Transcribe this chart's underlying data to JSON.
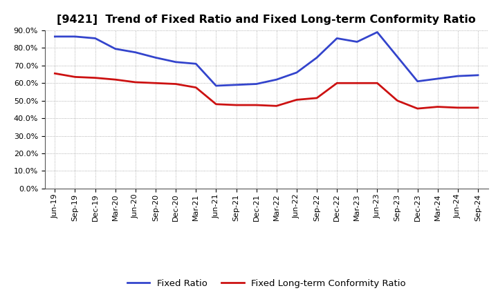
{
  "title": "[9421]  Trend of Fixed Ratio and Fixed Long-term Conformity Ratio",
  "x_labels": [
    "Jun-19",
    "Sep-19",
    "Dec-19",
    "Mar-20",
    "Jun-20",
    "Sep-20",
    "Dec-20",
    "Mar-21",
    "Jun-21",
    "Sep-21",
    "Dec-21",
    "Mar-22",
    "Jun-22",
    "Sep-22",
    "Dec-22",
    "Mar-23",
    "Jun-23",
    "Sep-23",
    "Dec-23",
    "Mar-24",
    "Jun-24",
    "Sep-24"
  ],
  "fixed_ratio": [
    86.5,
    86.5,
    85.5,
    79.5,
    77.5,
    74.5,
    72.0,
    71.0,
    58.5,
    59.0,
    59.5,
    62.0,
    66.0,
    74.5,
    85.5,
    83.5,
    89.0,
    75.0,
    61.0,
    62.5,
    64.0,
    64.5
  ],
  "fixed_lt_ratio": [
    65.5,
    63.5,
    63.0,
    62.0,
    60.5,
    60.0,
    59.5,
    57.5,
    48.0,
    47.5,
    47.5,
    47.0,
    50.5,
    51.5,
    60.0,
    60.0,
    60.0,
    50.0,
    45.5,
    46.5,
    46.0,
    46.0
  ],
  "fixed_ratio_color": "#3344cc",
  "fixed_lt_ratio_color": "#cc1111",
  "ylim": [
    0,
    90
  ],
  "yticks": [
    0,
    10,
    20,
    30,
    40,
    50,
    60,
    70,
    80,
    90
  ],
  "background_color": "#ffffff",
  "grid_color": "#999999",
  "legend_fixed": "Fixed Ratio",
  "legend_lt": "Fixed Long-term Conformity Ratio",
  "title_fontsize": 11.5,
  "tick_fontsize": 8,
  "legend_fontsize": 9.5
}
